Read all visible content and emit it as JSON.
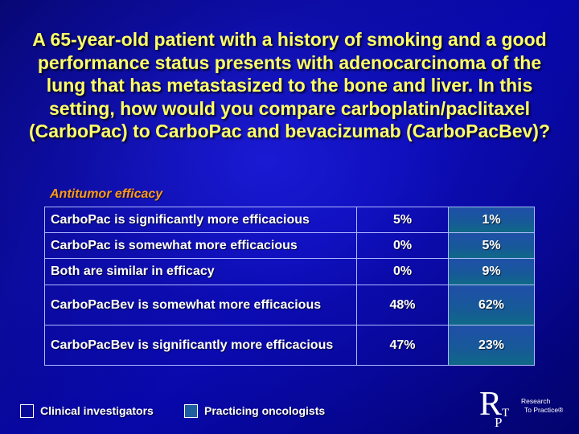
{
  "slide": {
    "title": "A 65-year-old patient with a history of smoking and a good performance status presents with adenocarcinoma of the lung that has metastasized to the bone and liver. In this setting, how would you compare carboplatin/paclitaxel (CarboPac) to CarboPac and bevacizumab (CarboPacBev)?",
    "section_label": "Antitumor efficacy"
  },
  "table": {
    "rows": [
      {
        "label": "CarboPac is significantly more efficacious",
        "clinical": "5%",
        "practicing": "1%"
      },
      {
        "label": "CarboPac is somewhat more efficacious",
        "clinical": "0%",
        "practicing": "5%"
      },
      {
        "label": "Both are similar in efficacy",
        "clinical": "0%",
        "practicing": "9%"
      },
      {
        "label": "CarboPacBev is somewhat more efficacious",
        "clinical": "48%",
        "practicing": "62%"
      },
      {
        "label": "CarboPacBev is significantly more efficacious",
        "clinical": "47%",
        "practicing": "23%"
      }
    ]
  },
  "legend": {
    "items": [
      {
        "label": "Clinical investigators",
        "color": "#0a0a9a"
      },
      {
        "label": "Practicing oncologists",
        "color": "#1c5ea0"
      }
    ]
  },
  "logo": {
    "letters": "RTP",
    "line1": "Research",
    "line2": "To Practice®"
  },
  "colors": {
    "title": "#ffff66",
    "section_label": "#ff9a1a",
    "background": "#0707a8"
  }
}
